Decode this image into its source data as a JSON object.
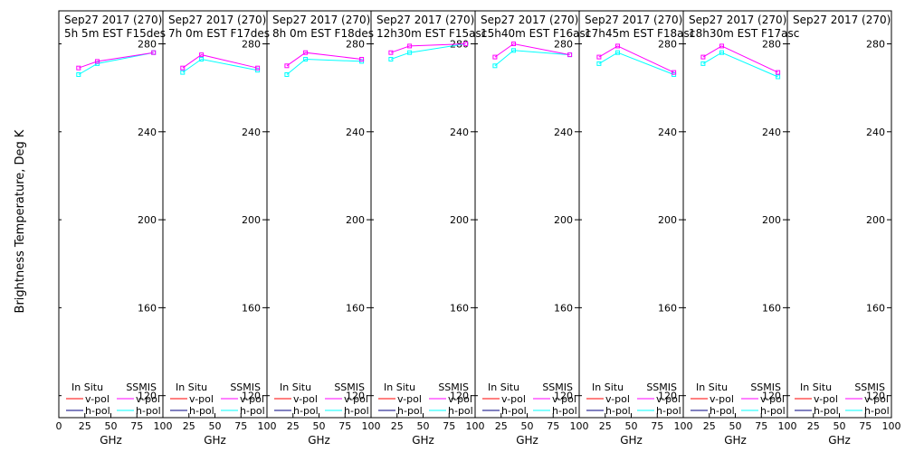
{
  "chart_data": {
    "type": "line",
    "ylabel": "Brightness Temperature, Deg K",
    "xlabel": "GHz",
    "xlim": [
      0,
      100
    ],
    "ylim": [
      110,
      295
    ],
    "yticks": [
      120,
      160,
      200,
      240,
      280
    ],
    "xticks": [
      0,
      25,
      50,
      75,
      100
    ],
    "legend": {
      "in_situ_label": "In Situ",
      "ssmis_label": "SSMIS",
      "v_pol": "v-pol",
      "h_pol": "h-pol",
      "colors": {
        "in_situ_v": "#ff0000",
        "in_situ_h": "#000080",
        "ssmis_v": "#ff00ff",
        "ssmis_h": "#00ffff"
      }
    },
    "panels": [
      {
        "title1": "Sep27 2017 (270)",
        "title2": "5h 5m  EST F15des",
        "ssmis_v": [
          [
            19,
            269
          ],
          [
            37,
            272
          ],
          [
            91,
            276
          ]
        ],
        "ssmis_h": [
          [
            19,
            266
          ],
          [
            37,
            271
          ],
          [
            91,
            276
          ]
        ]
      },
      {
        "title1": "Sep27 2017 (270)",
        "title2": "7h 0m  EST F17des",
        "ssmis_v": [
          [
            19,
            269
          ],
          [
            37,
            275
          ],
          [
            91,
            269
          ]
        ],
        "ssmis_h": [
          [
            19,
            267
          ],
          [
            37,
            273
          ],
          [
            91,
            268
          ]
        ]
      },
      {
        "title1": "Sep27 2017 (270)",
        "title2": "8h 0m  EST F18des",
        "ssmis_v": [
          [
            19,
            270
          ],
          [
            37,
            276
          ],
          [
            91,
            273
          ]
        ],
        "ssmis_h": [
          [
            19,
            266
          ],
          [
            37,
            273
          ],
          [
            91,
            272
          ]
        ]
      },
      {
        "title1": "Sep27 2017 (270)",
        "title2": "12h30m  EST F15asc",
        "ssmis_v": [
          [
            19,
            276
          ],
          [
            37,
            279
          ],
          [
            91,
            280
          ]
        ],
        "ssmis_h": [
          [
            19,
            273
          ],
          [
            37,
            276
          ],
          [
            91,
            280
          ]
        ]
      },
      {
        "title1": "Sep27 2017 (270)",
        "title2": "15h40m  EST F16asc",
        "ssmis_v": [
          [
            19,
            274
          ],
          [
            37,
            280
          ],
          [
            91,
            275
          ]
        ],
        "ssmis_h": [
          [
            19,
            270
          ],
          [
            37,
            277
          ],
          [
            91,
            275
          ]
        ]
      },
      {
        "title1": "Sep27 2017 (270)",
        "title2": "17h45m  EST F18asc",
        "ssmis_v": [
          [
            19,
            274
          ],
          [
            37,
            279
          ],
          [
            91,
            267
          ]
        ],
        "ssmis_h": [
          [
            19,
            271
          ],
          [
            37,
            276
          ],
          [
            91,
            266
          ]
        ]
      },
      {
        "title1": "Sep27 2017 (270)",
        "title2": "18h30m  EST F17asc",
        "ssmis_v": [
          [
            19,
            274
          ],
          [
            37,
            279
          ],
          [
            91,
            267
          ]
        ],
        "ssmis_h": [
          [
            19,
            271
          ],
          [
            37,
            276
          ],
          [
            91,
            265
          ]
        ]
      },
      {
        "title1": "Sep27 2017 (270)",
        "title2": "",
        "ssmis_v": [],
        "ssmis_h": []
      }
    ]
  }
}
